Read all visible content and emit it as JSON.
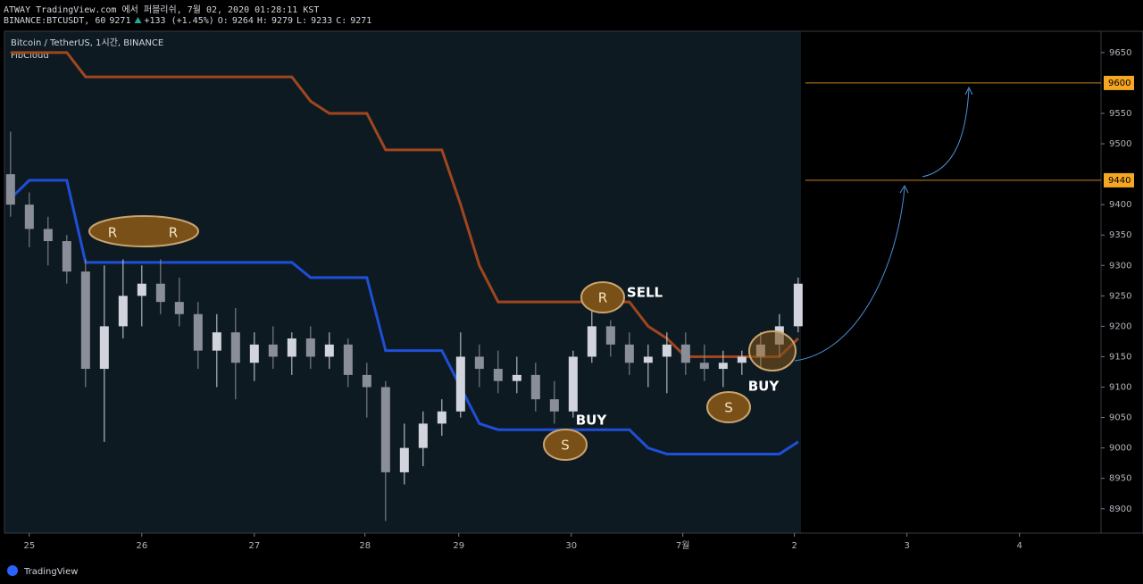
{
  "header": {
    "published": "ATWAY TradingView.com 에서 퍼블리쉬, 7월 02, 2020 01:28:11 KST",
    "symbol": "BINANCE:BTCUSDT, 60",
    "last": "9271",
    "change": "+133 (+1.45%)",
    "ohlc": [
      "O:",
      "9264",
      "H:",
      "9279",
      "L:",
      "9233",
      "C:",
      "9271"
    ]
  },
  "footer": {
    "brand": "TradingView"
  },
  "chart_data": {
    "type": "candlestick",
    "legend": [
      "Bitcoin / TetherUS, 1시간, BINANCE",
      "FibCloud"
    ],
    "x": [
      -4,
      0,
      4,
      8,
      12,
      16,
      20,
      24,
      28,
      32,
      36,
      40,
      44,
      48,
      52,
      56,
      60,
      64,
      68,
      72,
      76,
      80,
      84,
      88,
      92,
      96,
      100,
      104,
      108,
      112,
      116,
      120,
      124,
      128,
      132,
      136,
      140,
      144,
      148,
      152,
      156,
      160,
      164
    ],
    "open": [
      9450,
      9400,
      9360,
      9340,
      9290,
      9130,
      9200,
      9250,
      9270,
      9240,
      9220,
      9160,
      9190,
      9140,
      9170,
      9150,
      9180,
      9150,
      9170,
      9120,
      9100,
      8960,
      9000,
      9040,
      9060,
      9150,
      9130,
      9110,
      9120,
      9080,
      9060,
      9150,
      9200,
      9170,
      9140,
      9150,
      9170,
      9140,
      9130,
      9140,
      9150,
      9170,
      9200
    ],
    "high": [
      9520,
      9420,
      9380,
      9350,
      9310,
      9300,
      9310,
      9300,
      9310,
      9280,
      9240,
      9220,
      9230,
      9190,
      9200,
      9190,
      9200,
      9190,
      9180,
      9140,
      9110,
      9040,
      9060,
      9080,
      9190,
      9170,
      9160,
      9150,
      9140,
      9110,
      9160,
      9230,
      9210,
      9190,
      9170,
      9190,
      9190,
      9170,
      9160,
      9160,
      9190,
      9220,
      9280
    ],
    "low": [
      9380,
      9330,
      9300,
      9270,
      9100,
      9010,
      9180,
      9200,
      9220,
      9200,
      9130,
      9100,
      9080,
      9110,
      9130,
      9120,
      9130,
      9130,
      9100,
      9050,
      8880,
      8940,
      8970,
      9020,
      9050,
      9100,
      9090,
      9090,
      9060,
      9040,
      9050,
      9140,
      9150,
      9120,
      9100,
      9090,
      9120,
      9110,
      9100,
      9120,
      9130,
      9150,
      9190
    ],
    "close": [
      9400,
      9360,
      9340,
      9290,
      9130,
      9200,
      9250,
      9270,
      9240,
      9220,
      9160,
      9190,
      9140,
      9170,
      9150,
      9180,
      9150,
      9170,
      9120,
      9100,
      8960,
      9000,
      9040,
      9060,
      9150,
      9130,
      9110,
      9120,
      9080,
      9060,
      9150,
      9200,
      9170,
      9140,
      9150,
      9170,
      9140,
      9130,
      9140,
      9150,
      9170,
      9200,
      9270
    ],
    "up_color": "#d1d4dc",
    "down_color": "#8a8e99",
    "series": [
      {
        "color": "#a0461f",
        "values": [
          9650,
          9650,
          9650,
          9650,
          9610,
          9610,
          9610,
          9610,
          9610,
          9610,
          9610,
          9610,
          9610,
          9610,
          9610,
          9610,
          9570,
          9550,
          9550,
          9550,
          9490,
          9490,
          9490,
          9490,
          9400,
          9300,
          9240,
          9240,
          9240,
          9240,
          9240,
          9240,
          9240,
          9240,
          9200,
          9180,
          9150,
          9150,
          9150,
          9150,
          9150,
          9150,
          9180
        ]
      },
      {
        "color": "#1e4fd8",
        "values": [
          9410,
          9440,
          9440,
          9440,
          9305,
          9305,
          9305,
          9305,
          9305,
          9305,
          9305,
          9305,
          9305,
          9305,
          9305,
          9305,
          9280,
          9280,
          9280,
          9280,
          9160,
          9160,
          9160,
          9160,
          9100,
          9040,
          9030,
          9030,
          9030,
          9030,
          9030,
          9030,
          9030,
          9030,
          9000,
          8990,
          8990,
          8990,
          8990,
          8990,
          8990,
          8990,
          9010
        ]
      }
    ],
    "levels": [
      {
        "value": 9600,
        "color": "#f5a623"
      },
      {
        "value": 9440,
        "color": "#f5a623"
      }
    ],
    "xlim": [
      -5.3,
      228.6
    ],
    "ylim": [
      8860,
      9685
    ],
    "xticks": [
      {
        "value": 0,
        "label": "25"
      },
      {
        "value": 24,
        "label": "26"
      },
      {
        "value": 48,
        "label": "27"
      },
      {
        "value": 71.6,
        "label": "28"
      },
      {
        "value": 91.6,
        "label": "29"
      },
      {
        "value": 115.6,
        "label": "30"
      },
      {
        "value": 139.4,
        "label": "7월"
      },
      {
        "value": 163.2,
        "label": "2"
      },
      {
        "value": 187.2,
        "label": "3"
      },
      {
        "value": 211.2,
        "label": "4"
      }
    ],
    "yticks": [
      8900,
      8950,
      9000,
      9050,
      9100,
      9150,
      9200,
      9250,
      9300,
      9350,
      9400,
      9500,
      9550,
      9650
    ],
    "annotations": [
      "R",
      "R",
      "R",
      "SELL",
      "S",
      "BUY",
      "S",
      "BUY"
    ]
  }
}
